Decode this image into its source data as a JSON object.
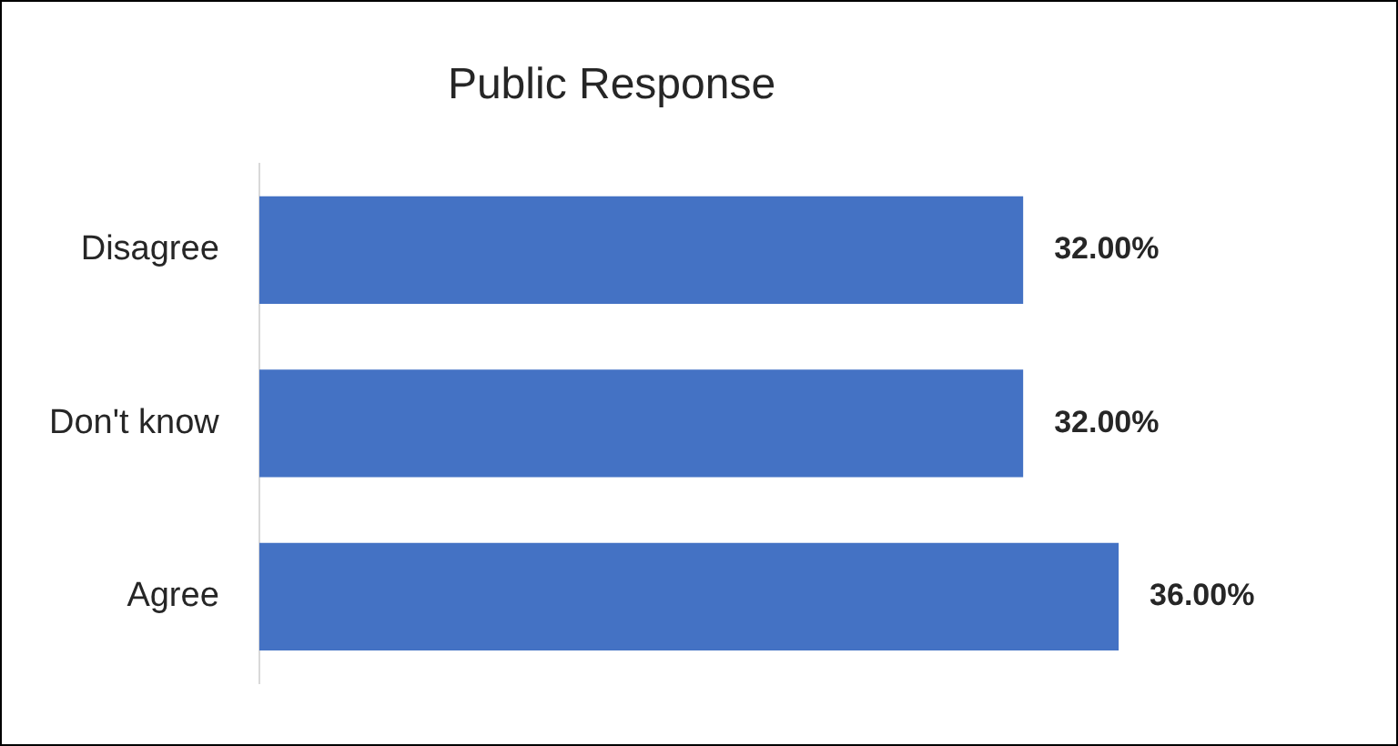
{
  "chart_data": {
    "type": "bar",
    "orientation": "horizontal",
    "title": "Public Response",
    "categories": [
      "Disagree",
      "Don't know",
      "Agree"
    ],
    "values": [
      32,
      32,
      36
    ],
    "color": "#4472c4",
    "value_labels": [
      "32.00%",
      "32.00%",
      "36.00%"
    ],
    "tick_labels": "y",
    "grid": false,
    "legend": false
  }
}
